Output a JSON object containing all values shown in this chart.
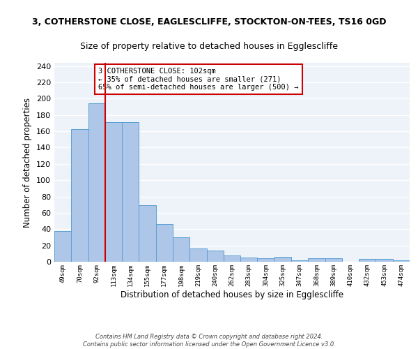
{
  "title1": "3, COTHERSTONE CLOSE, EAGLESCLIFFE, STOCKTON-ON-TEES, TS16 0GD",
  "title2": "Size of property relative to detached houses in Egglescliffe",
  "xlabel": "Distribution of detached houses by size in Egglescliffe",
  "ylabel": "Number of detached properties",
  "categories": [
    "49sqm",
    "70sqm",
    "92sqm",
    "113sqm",
    "134sqm",
    "155sqm",
    "177sqm",
    "198sqm",
    "219sqm",
    "240sqm",
    "262sqm",
    "283sqm",
    "304sqm",
    "325sqm",
    "347sqm",
    "368sqm",
    "389sqm",
    "410sqm",
    "432sqm",
    "453sqm",
    "474sqm"
  ],
  "values": [
    38,
    163,
    194,
    171,
    171,
    69,
    46,
    30,
    16,
    14,
    8,
    5,
    4,
    6,
    2,
    4,
    4,
    0,
    3,
    3,
    2
  ],
  "bar_color": "#aec6e8",
  "bar_edge_color": "#5a9fd4",
  "background_color": "#eef3fa",
  "grid_color": "#ffffff",
  "red_line_x": 2.5,
  "annotation_text": "3 COTHERSTONE CLOSE: 102sqm\n← 35% of detached houses are smaller (271)\n65% of semi-detached houses are larger (500) →",
  "annotation_box_color": "#ffffff",
  "annotation_box_edge": "#cc0000",
  "red_line_color": "#cc0000",
  "ylim": [
    0,
    244
  ],
  "yticks": [
    0,
    20,
    40,
    60,
    80,
    100,
    120,
    140,
    160,
    180,
    200,
    220,
    240
  ],
  "footer": "Contains HM Land Registry data © Crown copyright and database right 2024.\nContains public sector information licensed under the Open Government Licence v3.0.",
  "title1_fontsize": 9,
  "title2_fontsize": 9,
  "xlabel_fontsize": 8.5,
  "ylabel_fontsize": 8.5,
  "annot_fontsize": 7.5,
  "footer_fontsize": 6.0
}
